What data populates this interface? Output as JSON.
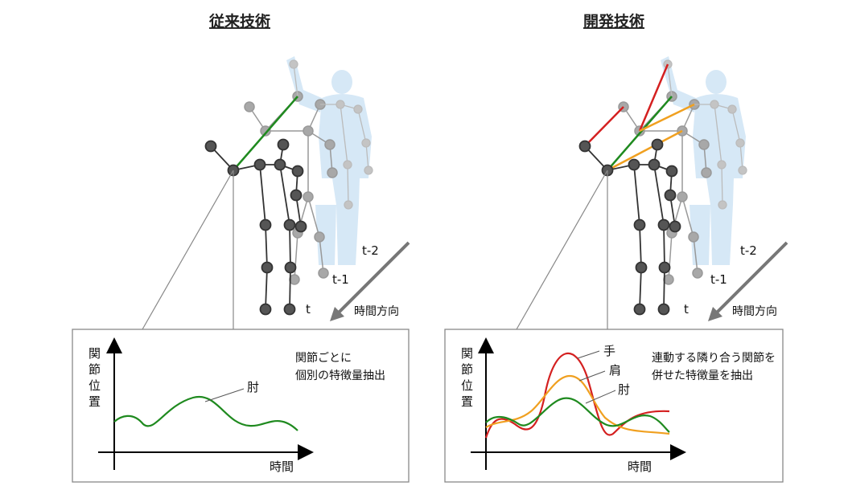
{
  "left_panel": {
    "title": "従来技術",
    "frame_labels": [
      "t-2",
      "t-1",
      "t"
    ],
    "time_direction": "時間方向",
    "graph": {
      "ylabel_chars": [
        "関",
        "節",
        "位",
        "置"
      ],
      "xlabel": "時間",
      "note_lines": [
        "関節ごとに",
        "個別の特徴量抽出"
      ],
      "series_labels": [
        "肘"
      ]
    }
  },
  "right_panel": {
    "title": "開発技術",
    "frame_labels": [
      "t-2",
      "t-1",
      "t"
    ],
    "time_direction": "時間方向",
    "graph": {
      "ylabel_chars": [
        "関",
        "節",
        "位",
        "置"
      ],
      "xlabel": "時間",
      "note_lines": [
        "連動する隣り合う関節を",
        "併せた特徴量を抽出"
      ],
      "series_labels": [
        "手",
        "肩",
        "肘"
      ]
    }
  },
  "colors": {
    "elbow": "#1f8a1f",
    "shoulder": "#f0a020",
    "hand": "#d42020",
    "skeleton_t": "#555555",
    "skeleton_t1": "#9a9a9a",
    "silhouette": "#cfe4f5"
  },
  "icons": [
    "skeleton-figure",
    "silhouette-figure",
    "time-arrow"
  ]
}
